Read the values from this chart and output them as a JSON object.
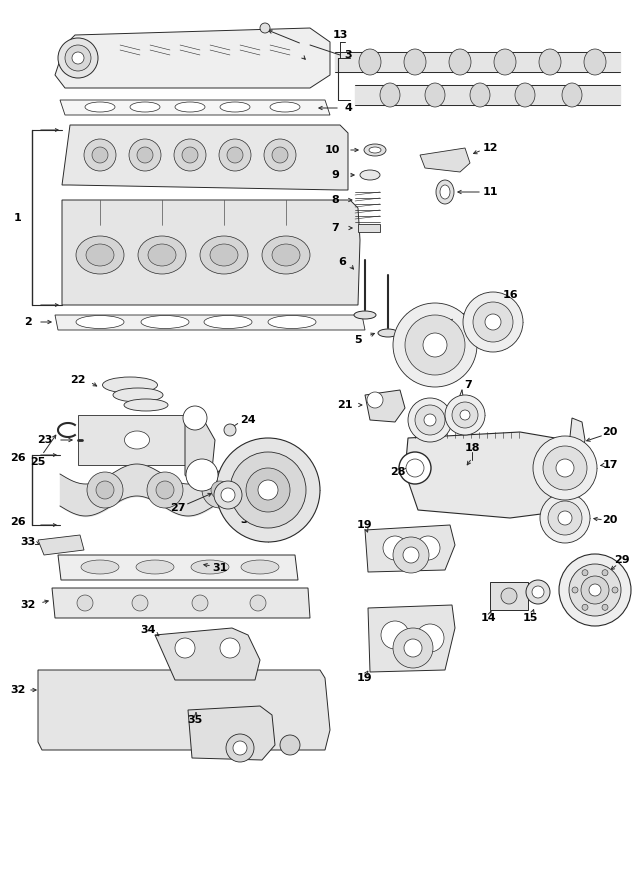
{
  "bg_color": "#ffffff",
  "line_color": "#2a2a2a",
  "fig_width": 6.4,
  "fig_height": 8.71,
  "dpi": 100
}
